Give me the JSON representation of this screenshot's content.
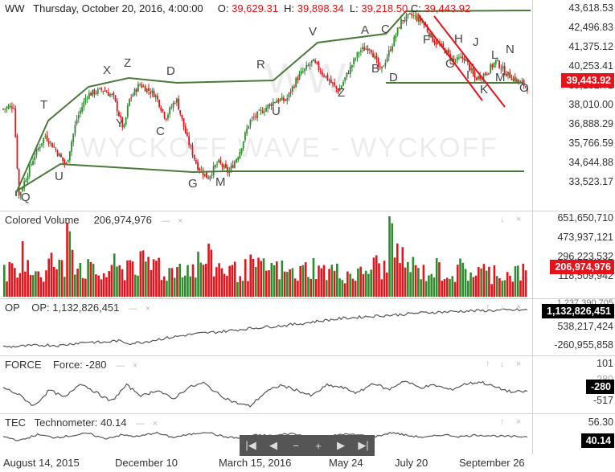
{
  "main": {
    "symbol": "WW",
    "datetime": "Thursday, October 20, 2016, 4:00:00",
    "o_label": "O:",
    "o_value": "39,629.31",
    "h_label": "H:",
    "h_value": "39,898.34",
    "l_label": "L:",
    "l_value": "39,218.50",
    "c_label": "C:",
    "c_value": "39,443.92",
    "watermark": "WYCKOFF WAVE - WYCKOFF",
    "watermark2": "WW",
    "last_price": "39,443.92",
    "ticks": [
      "43,618.53",
      "42,496.83",
      "41,375.12",
      "40,253.41",
      "39,131.71",
      "38,010.00",
      "36,888.29",
      "35,766.59",
      "34,644.88",
      "33,523.17"
    ]
  },
  "volume": {
    "name": "Colored Volume",
    "value": "206,974,976",
    "last": "206,974,976",
    "ticks": [
      "651,650,710",
      "473,937,121",
      "296,223,532",
      "118,509,942"
    ]
  },
  "op": {
    "name": "OP",
    "label": "OP: 1,132,826,451",
    "last": "1,132,826,451",
    "ticks": [
      "1,237,390,705",
      "538,217,424",
      "-260,955,858"
    ]
  },
  "force": {
    "name": "FORCE",
    "label": "Force: -280",
    "last": "-280",
    "ticks": [
      "101",
      "-280",
      "-517"
    ]
  },
  "tec": {
    "name": "TEC",
    "label": "Technometer: 40.14",
    "last": "40.14",
    "ticks": [
      "56.30"
    ]
  },
  "controls": {
    "dash": "—",
    "close": "×",
    "down": "↓",
    "up": "↑"
  },
  "navigator": [
    "|◀",
    "◀",
    "−",
    "+",
    "▶",
    "▶|"
  ],
  "xaxis": [
    "August 14, 2015",
    "December 10",
    "March 15, 2016",
    "May 24",
    "July 20",
    "September 26"
  ],
  "colors": {
    "up": "#2e8b2e",
    "down": "#e5131b",
    "channel": "#4a7a3a",
    "trend": "#e5131b",
    "line": "#555555"
  },
  "chart_data": {
    "type": "candlestick",
    "title": "WW",
    "ylim": [
      33000,
      43900
    ],
    "ohlc_current": {
      "open": 39629.31,
      "high": 39898.34,
      "low": 39218.5,
      "close": 39443.92
    },
    "x_ticks": [
      "August 14, 2015",
      "December 10",
      "March 15, 2016",
      "May 24",
      "July 20",
      "September 26"
    ],
    "y_ticks": [
      43618.53,
      42496.83,
      41375.12,
      40253.41,
      39131.71,
      38010.0,
      36888.29,
      35766.59,
      34644.88,
      33523.17
    ],
    "wave_labels": [
      "Q",
      "T",
      "U",
      "X",
      "Y",
      "Z",
      "C",
      "D",
      "G",
      "M",
      "R",
      "U",
      "V",
      "Z",
      "A",
      "B",
      "C",
      "D",
      "F",
      "G",
      "H",
      "I",
      "J",
      "K",
      "L",
      "M",
      "N",
      "O"
    ],
    "close_path": [
      {
        "x": 0.0,
        "y": 38200
      },
      {
        "x": 0.02,
        "y": 38400
      },
      {
        "x": 0.03,
        "y": 33300
      },
      {
        "x": 0.06,
        "y": 35600
      },
      {
        "x": 0.08,
        "y": 36700
      },
      {
        "x": 0.1,
        "y": 35900
      },
      {
        "x": 0.12,
        "y": 35000
      },
      {
        "x": 0.14,
        "y": 37600
      },
      {
        "x": 0.16,
        "y": 39000
      },
      {
        "x": 0.19,
        "y": 39300
      },
      {
        "x": 0.21,
        "y": 38900
      },
      {
        "x": 0.23,
        "y": 37000
      },
      {
        "x": 0.24,
        "y": 38700
      },
      {
        "x": 0.26,
        "y": 39600
      },
      {
        "x": 0.29,
        "y": 39000
      },
      {
        "x": 0.31,
        "y": 37700
      },
      {
        "x": 0.33,
        "y": 38800
      },
      {
        "x": 0.35,
        "y": 36600
      },
      {
        "x": 0.37,
        "y": 35000
      },
      {
        "x": 0.39,
        "y": 34300
      },
      {
        "x": 0.41,
        "y": 35200
      },
      {
        "x": 0.43,
        "y": 34600
      },
      {
        "x": 0.45,
        "y": 35700
      },
      {
        "x": 0.47,
        "y": 37500
      },
      {
        "x": 0.49,
        "y": 38000
      },
      {
        "x": 0.52,
        "y": 38700
      },
      {
        "x": 0.54,
        "y": 38700
      },
      {
        "x": 0.56,
        "y": 39900
      },
      {
        "x": 0.59,
        "y": 40900
      },
      {
        "x": 0.61,
        "y": 40200
      },
      {
        "x": 0.64,
        "y": 39200
      },
      {
        "x": 0.66,
        "y": 40400
      },
      {
        "x": 0.68,
        "y": 41500
      },
      {
        "x": 0.7,
        "y": 41700
      },
      {
        "x": 0.72,
        "y": 40300
      },
      {
        "x": 0.74,
        "y": 41700
      },
      {
        "x": 0.76,
        "y": 43200
      },
      {
        "x": 0.78,
        "y": 43500
      },
      {
        "x": 0.8,
        "y": 43100
      },
      {
        "x": 0.82,
        "y": 42100
      },
      {
        "x": 0.84,
        "y": 41600
      },
      {
        "x": 0.86,
        "y": 40900
      },
      {
        "x": 0.88,
        "y": 41100
      },
      {
        "x": 0.9,
        "y": 39900
      },
      {
        "x": 0.92,
        "y": 40200
      },
      {
        "x": 0.94,
        "y": 40900
      },
      {
        "x": 0.96,
        "y": 40200
      },
      {
        "x": 0.98,
        "y": 39800
      },
      {
        "x": 1.0,
        "y": 39444
      }
    ],
    "volume": {
      "ylim": [
        0,
        700000000
      ],
      "last": 206974976,
      "values": [
        210,
        180,
        360,
        240,
        200,
        300,
        250,
        650,
        280,
        240,
        200,
        190,
        260,
        220,
        310,
        280,
        260,
        300,
        210,
        240,
        280,
        250,
        300,
        320,
        260,
        240,
        220,
        230,
        260,
        240,
        250,
        230,
        210,
        200,
        240,
        260,
        220,
        230,
        210,
        200,
        190,
        230,
        270,
        240,
        600,
        320,
        260,
        230,
        210,
        240,
        220,
        200,
        240,
        210,
        220,
        200,
        230,
        190,
        210,
        207
      ]
    },
    "op": {
      "ylim": [
        -450000000,
        1300000000
      ],
      "values": [
        -250,
        -230,
        -210,
        -180,
        -200,
        -120,
        -60,
        -90,
        -20,
        -120,
        -60,
        40,
        120,
        200,
        260,
        300,
        360,
        420,
        470,
        520,
        560,
        620,
        700,
        760,
        820,
        860,
        900,
        930,
        960,
        1010,
        1040,
        1060,
        1080,
        1100,
        1110,
        1120,
        1130,
        1133
      ]
    },
    "force": {
      "ylim": [
        -700,
        300
      ],
      "values": [
        -200,
        -350,
        -600,
        -250,
        -420,
        -100,
        -300,
        -500,
        -150,
        -380,
        -250,
        -450,
        -200,
        -100,
        -350,
        -520,
        -600,
        -300,
        -150,
        -250,
        -380,
        -150,
        -200,
        -320,
        -100,
        -250,
        -50,
        -200,
        -150,
        -250,
        -120,
        -80,
        -200,
        -300,
        -280
      ]
    },
    "tec": {
      "ylim": [
        0,
        80
      ],
      "values": [
        40,
        30,
        45,
        38,
        42,
        48,
        35,
        44,
        40,
        50,
        38,
        45,
        52,
        40,
        36,
        44,
        42,
        48,
        40,
        38,
        46,
        44,
        40,
        50,
        42,
        38,
        45,
        40,
        44,
        42,
        40,
        40.14
      ]
    }
  }
}
